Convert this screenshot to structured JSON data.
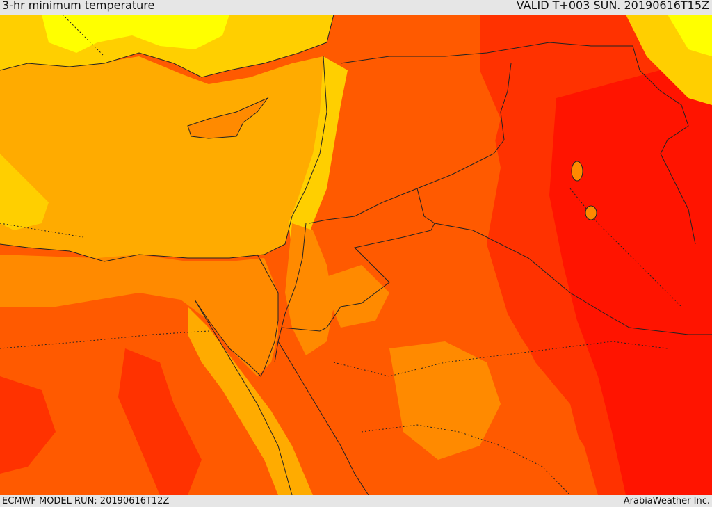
{
  "header": {
    "title": "3-hr minimum temperature",
    "valid": "VALID T+003 SUN. 20190616T15Z"
  },
  "footer": {
    "model_run": "ECMWF MODEL RUN: 20190616T12Z",
    "credit": "ArabiaWeather Inc."
  },
  "colors": {
    "yellow": "#ffff00",
    "light_orange": "#ffcf00",
    "orange": "#ffab00",
    "dark_orange": "#ff8a00",
    "red_orange": "#ff5a00",
    "orange_red": "#ff3200",
    "red": "#ff1400",
    "coast_line": "#222222"
  },
  "map_features": {
    "land_color": "red-orange shading",
    "sea_color": "orange shading",
    "borders": "dotted",
    "coastlines": "solid"
  }
}
